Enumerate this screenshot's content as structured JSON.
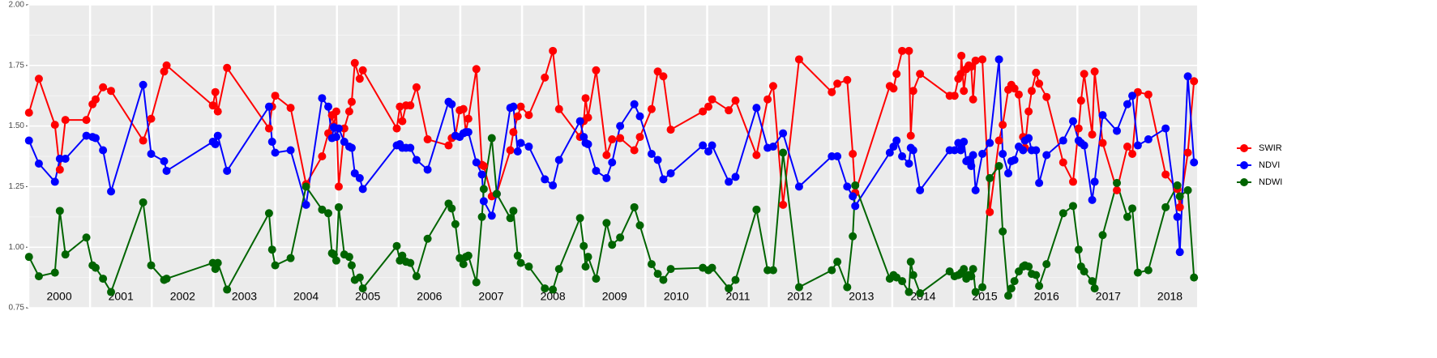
{
  "chart_data": {
    "type": "line",
    "x": [
      2000.01,
      2000.17,
      2000.43,
      2000.51,
      2000.6,
      2000.94,
      2001.04,
      2001.09,
      2001.21,
      2001.34,
      2001.86,
      2001.99,
      2002.2,
      2002.24,
      2002.99,
      2003.03,
      2003.07,
      2003.22,
      2003.9,
      2003.95,
      2004.0,
      2004.25,
      2004.5,
      2004.76,
      2004.86,
      2004.92,
      2004.95,
      2004.99,
      2005.03,
      2005.12,
      2005.2,
      2005.24,
      2005.29,
      2005.37,
      2005.42,
      2005.97,
      2006.02,
      2006.06,
      2006.12,
      2006.19,
      2006.29,
      2006.47,
      2006.81,
      2006.86,
      2006.92,
      2006.99,
      2007.05,
      2007.09,
      2007.13,
      2007.26,
      2007.35,
      2007.38,
      2007.51,
      2007.59,
      2007.81,
      2007.86,
      2007.93,
      2007.98,
      2008.11,
      2008.37,
      2008.5,
      2008.6,
      2008.94,
      2009.0,
      2009.03,
      2009.07,
      2009.2,
      2009.37,
      2009.46,
      2009.59,
      2009.82,
      2009.91,
      2010.1,
      2010.2,
      2010.29,
      2010.41,
      2010.93,
      2011.02,
      2011.08,
      2011.35,
      2011.46,
      2011.8,
      2011.98,
      2012.07,
      2012.23,
      2012.49,
      2013.02,
      2013.11,
      2013.27,
      2013.36,
      2013.4,
      2013.96,
      2014.02,
      2014.07,
      2014.16,
      2014.27,
      2014.3,
      2014.34,
      2014.45,
      2014.93,
      2015.01,
      2015.07,
      2015.11,
      2015.12,
      2015.16,
      2015.2,
      2015.24,
      2015.28,
      2015.31,
      2015.35,
      2015.46,
      2015.58,
      2015.73,
      2015.79,
      2015.88,
      2015.93,
      2015.98,
      2016.05,
      2016.12,
      2016.15,
      2016.21,
      2016.26,
      2016.33,
      2016.38,
      2016.5,
      2016.77,
      2016.93,
      2017.02,
      2017.06,
      2017.11,
      2017.24,
      2017.28,
      2017.41,
      2017.64,
      2017.81,
      2017.89,
      2017.98,
      2018.15,
      2018.43,
      2018.62,
      2018.66,
      2018.79,
      2018.89
    ],
    "series": [
      {
        "name": "SWIR",
        "color": "#ff0000",
        "values": [
          1.555,
          1.695,
          1.505,
          1.32,
          1.525,
          1.525,
          1.59,
          1.61,
          1.66,
          1.645,
          1.44,
          1.53,
          1.725,
          1.75,
          1.585,
          1.64,
          1.56,
          1.74,
          1.49,
          1.58,
          1.625,
          1.575,
          1.26,
          1.375,
          1.47,
          1.545,
          1.5,
          1.56,
          1.25,
          1.49,
          1.56,
          1.6,
          1.76,
          1.695,
          1.73,
          1.49,
          1.58,
          1.52,
          1.585,
          1.585,
          1.66,
          1.445,
          1.42,
          1.45,
          1.46,
          1.565,
          1.57,
          1.475,
          1.53,
          1.735,
          1.34,
          1.335,
          1.21,
          1.22,
          1.4,
          1.475,
          1.54,
          1.58,
          1.545,
          1.7,
          1.81,
          1.57,
          1.455,
          1.52,
          1.615,
          1.535,
          1.73,
          1.38,
          1.445,
          1.45,
          1.4,
          1.455,
          1.57,
          1.725,
          1.705,
          1.485,
          1.56,
          1.58,
          1.61,
          1.565,
          1.605,
          1.38,
          1.61,
          1.665,
          1.175,
          1.775,
          1.64,
          1.675,
          1.69,
          1.385,
          1.225,
          1.665,
          1.655,
          1.715,
          1.81,
          1.81,
          1.46,
          1.645,
          1.715,
          1.625,
          1.625,
          1.695,
          1.715,
          1.79,
          1.645,
          1.735,
          1.75,
          1.745,
          1.61,
          1.77,
          1.775,
          1.145,
          1.44,
          1.505,
          1.65,
          1.67,
          1.655,
          1.63,
          1.455,
          1.41,
          1.56,
          1.645,
          1.72,
          1.675,
          1.62,
          1.35,
          1.27,
          1.49,
          1.605,
          1.715,
          1.465,
          1.725,
          1.43,
          1.235,
          1.415,
          1.385,
          1.64,
          1.63,
          1.3,
          1.24,
          1.165,
          1.39,
          1.685
        ]
      },
      {
        "name": "NDVI",
        "color": "#0000ff",
        "values": [
          1.44,
          1.345,
          1.27,
          1.365,
          1.365,
          1.46,
          1.455,
          1.45,
          1.4,
          1.23,
          1.67,
          1.385,
          1.355,
          1.315,
          1.435,
          1.425,
          1.46,
          1.315,
          1.58,
          1.435,
          1.39,
          1.4,
          1.175,
          1.615,
          1.58,
          1.45,
          1.495,
          1.455,
          1.49,
          1.435,
          1.415,
          1.41,
          1.305,
          1.285,
          1.24,
          1.42,
          1.425,
          1.41,
          1.41,
          1.41,
          1.36,
          1.32,
          1.6,
          1.59,
          1.46,
          1.455,
          1.47,
          1.475,
          1.475,
          1.35,
          1.3,
          1.19,
          1.13,
          1.22,
          1.575,
          1.58,
          1.395,
          1.43,
          1.415,
          1.28,
          1.255,
          1.36,
          1.52,
          1.455,
          1.43,
          1.425,
          1.315,
          1.285,
          1.35,
          1.5,
          1.59,
          1.54,
          1.385,
          1.36,
          1.28,
          1.305,
          1.42,
          1.395,
          1.42,
          1.27,
          1.29,
          1.575,
          1.41,
          1.415,
          1.47,
          1.25,
          1.375,
          1.375,
          1.25,
          1.21,
          1.17,
          1.39,
          1.415,
          1.44,
          1.375,
          1.345,
          1.41,
          1.4,
          1.235,
          1.4,
          1.4,
          1.43,
          1.4,
          1.41,
          1.435,
          1.355,
          1.36,
          1.335,
          1.38,
          1.235,
          1.385,
          1.43,
          1.775,
          1.385,
          1.305,
          1.355,
          1.36,
          1.415,
          1.4,
          1.44,
          1.45,
          1.4,
          1.4,
          1.265,
          1.38,
          1.44,
          1.52,
          1.44,
          1.43,
          1.42,
          1.195,
          1.27,
          1.545,
          1.48,
          1.59,
          1.625,
          1.42,
          1.445,
          1.49,
          1.125,
          0.98,
          1.705,
          1.35
        ]
      },
      {
        "name": "NDWI",
        "color": "#006400",
        "values": [
          0.96,
          0.88,
          0.895,
          1.15,
          0.97,
          1.04,
          0.925,
          0.915,
          0.87,
          0.815,
          1.185,
          0.925,
          0.865,
          0.87,
          0.935,
          0.91,
          0.935,
          0.825,
          1.14,
          0.99,
          0.925,
          0.955,
          1.25,
          1.155,
          1.14,
          0.975,
          0.97,
          0.945,
          1.165,
          0.97,
          0.96,
          0.925,
          0.865,
          0.875,
          0.83,
          1.005,
          0.945,
          0.965,
          0.94,
          0.935,
          0.88,
          1.035,
          1.18,
          1.16,
          1.095,
          0.955,
          0.93,
          0.96,
          0.965,
          0.855,
          1.125,
          1.24,
          1.45,
          1.22,
          1.12,
          1.15,
          0.965,
          0.935,
          0.92,
          0.83,
          0.825,
          0.91,
          1.12,
          1.005,
          0.92,
          0.96,
          0.87,
          1.1,
          1.01,
          1.04,
          1.165,
          1.09,
          0.93,
          0.89,
          0.865,
          0.91,
          0.915,
          0.905,
          0.915,
          0.83,
          0.865,
          1.155,
          0.905,
          0.905,
          1.39,
          0.835,
          0.905,
          0.94,
          0.835,
          1.045,
          1.255,
          0.87,
          0.885,
          0.875,
          0.86,
          0.815,
          0.94,
          0.885,
          0.81,
          0.9,
          0.88,
          0.885,
          0.89,
          0.895,
          0.91,
          0.87,
          0.885,
          0.88,
          0.91,
          0.815,
          0.835,
          1.285,
          1.335,
          1.065,
          0.8,
          0.83,
          0.86,
          0.9,
          0.92,
          0.925,
          0.92,
          0.89,
          0.885,
          0.84,
          0.93,
          1.14,
          1.17,
          0.99,
          0.92,
          0.9,
          0.86,
          0.83,
          1.05,
          1.265,
          1.125,
          1.16,
          0.895,
          0.905,
          1.165,
          1.255,
          1.21,
          1.235,
          0.875
        ]
      }
    ],
    "xlim": [
      2000,
      2018.94
    ],
    "xticks": [
      2000,
      2001,
      2002,
      2003,
      2004,
      2005,
      2006,
      2007,
      2008,
      2009,
      2010,
      2011,
      2012,
      2013,
      2014,
      2015,
      2016,
      2017,
      2018
    ],
    "ylim": [
      0.75,
      2.0
    ],
    "yticks": [
      {
        "value": 0.75,
        "label": "0.75"
      },
      {
        "value": 1.0,
        "label": "1.00"
      },
      {
        "value": 1.25,
        "label": "1.25"
      },
      {
        "value": 1.5,
        "label": "1.50"
      },
      {
        "value": 1.75,
        "label": "1.75"
      },
      {
        "value": 2.0,
        "label": "2.00"
      }
    ],
    "grid": true
  }
}
